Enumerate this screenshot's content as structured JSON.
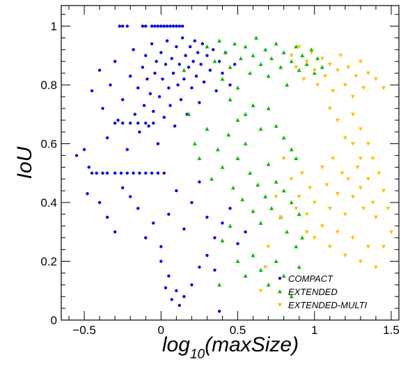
{
  "chart_data": {
    "type": "scatter",
    "xlabel": {
      "main": "log",
      "sub": "10",
      "rest": "(maxSize)"
    },
    "ylabel": "IoU",
    "xlim": [
      -0.65,
      1.55
    ],
    "ylim": [
      0,
      1.07
    ],
    "x_ticks": [
      {
        "value": -0.5,
        "label": "−0.5"
      },
      {
        "value": 0,
        "label": "0"
      },
      {
        "value": 0.5,
        "label": "0.5"
      },
      {
        "value": 1,
        "label": "1"
      },
      {
        "value": 1.5,
        "label": "1.5"
      }
    ],
    "y_ticks": [
      {
        "value": 0,
        "label": "0"
      },
      {
        "value": 0.2,
        "label": "0.2"
      },
      {
        "value": 0.4,
        "label": "0.4"
      },
      {
        "value": 0.6,
        "label": "0.6"
      },
      {
        "value": 0.8,
        "label": "0.8"
      },
      {
        "value": 1,
        "label": "1"
      }
    ],
    "grid": false,
    "legend_position": "bottom-right",
    "series": [
      {
        "name": "COMPACT",
        "color": "#0000ee",
        "marker": "circle",
        "points": [
          [
            -0.45,
            0.78
          ],
          [
            -0.4,
            0.85
          ],
          [
            -0.38,
            0.72
          ],
          [
            -0.35,
            0.62
          ],
          [
            -0.33,
            0.8
          ],
          [
            -0.3,
            0.88
          ],
          [
            -0.28,
            0.68
          ],
          [
            -0.25,
            0.75
          ],
          [
            -0.22,
            0.58
          ],
          [
            -0.2,
            0.83
          ],
          [
            -0.18,
            0.92
          ],
          [
            -0.17,
            0.7
          ],
          [
            -0.15,
            0.79
          ],
          [
            -0.14,
            0.64
          ],
          [
            -0.12,
            0.86
          ],
          [
            -0.11,
            0.73
          ],
          [
            -0.1,
            0.9
          ],
          [
            -0.09,
            0.82
          ],
          [
            -0.08,
            0.66
          ],
          [
            -0.07,
            0.77
          ],
          [
            -0.06,
            0.94
          ],
          [
            -0.05,
            0.71
          ],
          [
            -0.04,
            0.84
          ],
          [
            -0.03,
            0.88
          ],
          [
            -0.02,
            0.6
          ],
          [
            -0.01,
            0.76
          ],
          [
            0,
            0.91
          ],
          [
            0.01,
            0.82
          ],
          [
            0.02,
            0.69
          ],
          [
            0.03,
            0.87
          ],
          [
            0.04,
            0.95
          ],
          [
            0.05,
            0.79
          ],
          [
            0.06,
            0.73
          ],
          [
            0.07,
            0.89
          ],
          [
            0.08,
            0.84
          ],
          [
            0.09,
            0.66
          ],
          [
            0.1,
            0.93
          ],
          [
            0.11,
            0.8
          ],
          [
            0.12,
            0.87
          ],
          [
            0.13,
            0.75
          ],
          [
            0.14,
            0.96
          ],
          [
            0.15,
            0.82
          ],
          [
            0.16,
            0.9
          ],
          [
            0.17,
            0.7
          ],
          [
            0.18,
            0.86
          ],
          [
            0.19,
            0.93
          ],
          [
            0.2,
            0.79
          ],
          [
            0.21,
            0.88
          ],
          [
            0.22,
            0.95
          ],
          [
            0.23,
            0.83
          ],
          [
            0.24,
            0.91
          ],
          [
            0.25,
            0.74
          ],
          [
            0.26,
            0.87
          ],
          [
            0.27,
            0.94
          ],
          [
            0.28,
            0.81
          ],
          [
            0.3,
            0.9
          ],
          [
            0.32,
            0.85
          ],
          [
            0.34,
            0.92
          ],
          [
            0.36,
            0.78
          ],
          [
            0.38,
            0.88
          ],
          [
            0.4,
            0.84
          ],
          [
            0.42,
            0.91
          ],
          [
            0.45,
            0.8
          ],
          [
            0.48,
            0.87
          ],
          [
            -0.27,
            1.0
          ],
          [
            -0.25,
            1.0
          ],
          [
            -0.22,
            1.0
          ],
          [
            -0.12,
            1.0
          ],
          [
            -0.1,
            1.0
          ],
          [
            -0.06,
            1.0
          ],
          [
            -0.04,
            1.0
          ],
          [
            -0.02,
            1.0
          ],
          [
            0,
            1.0
          ],
          [
            0.02,
            1.0
          ],
          [
            0.04,
            1.0
          ],
          [
            0.06,
            1.0
          ],
          [
            0.08,
            1.0
          ],
          [
            0.1,
            1.0
          ],
          [
            0.12,
            1.0
          ],
          [
            0.14,
            1.0
          ],
          [
            -0.3,
            0.67
          ],
          [
            -0.25,
            0.67
          ],
          [
            -0.2,
            0.67
          ],
          [
            -0.15,
            0.67
          ],
          [
            -0.1,
            0.67
          ],
          [
            -0.05,
            0.67
          ],
          [
            -0.45,
            0.5
          ],
          [
            -0.42,
            0.5
          ],
          [
            -0.38,
            0.5
          ],
          [
            -0.35,
            0.5
          ],
          [
            -0.3,
            0.5
          ],
          [
            -0.26,
            0.5
          ],
          [
            -0.22,
            0.5
          ],
          [
            -0.18,
            0.5
          ],
          [
            -0.14,
            0.5
          ],
          [
            -0.1,
            0.5
          ],
          [
            -0.06,
            0.5
          ],
          [
            -0.02,
            0.5
          ],
          [
            0.02,
            0.5
          ],
          [
            -0.55,
            0.56
          ],
          [
            -0.5,
            0.58
          ],
          [
            -0.47,
            0.52
          ],
          [
            -0.48,
            0.43
          ],
          [
            -0.4,
            0.4
          ],
          [
            -0.35,
            0.35
          ],
          [
            -0.3,
            0.3
          ],
          [
            -0.25,
            0.45
          ],
          [
            -0.2,
            0.42
          ],
          [
            -0.15,
            0.38
          ],
          [
            -0.1,
            0.28
          ],
          [
            -0.05,
            0.33
          ],
          [
            0,
            0.25
          ],
          [
            0.05,
            0.36
          ],
          [
            0.1,
            0.44
          ],
          [
            0.15,
            0.31
          ],
          [
            0.2,
            0.4
          ],
          [
            0.25,
            0.47
          ],
          [
            0.3,
            0.35
          ],
          [
            0.35,
            0.28
          ],
          [
            0.4,
            0.33
          ],
          [
            0.45,
            0.38
          ],
          [
            0.5,
            0.26
          ],
          [
            0.55,
            0.3
          ],
          [
            0,
            0.2
          ],
          [
            0.05,
            0.15
          ],
          [
            0.1,
            0.1
          ],
          [
            0.12,
            0.05
          ],
          [
            0.15,
            0.08
          ],
          [
            0.2,
            0.12
          ],
          [
            0.25,
            0.18
          ],
          [
            0.3,
            0.22
          ],
          [
            0.35,
            0.17
          ],
          [
            0.38,
            0.03
          ],
          [
            0.03,
            0.11
          ],
          [
            0.07,
            0.07
          ]
        ]
      },
      {
        "name": "EXTENDED",
        "color": "#00bb00",
        "marker": "triangle-up",
        "points": [
          [
            0.3,
            0.93
          ],
          [
            0.35,
            0.88
          ],
          [
            0.38,
            0.95
          ],
          [
            0.4,
            0.82
          ],
          [
            0.42,
            0.91
          ],
          [
            0.45,
            0.86
          ],
          [
            0.48,
            0.94
          ],
          [
            0.5,
            0.79
          ],
          [
            0.52,
            0.89
          ],
          [
            0.55,
            0.93
          ],
          [
            0.58,
            0.84
          ],
          [
            0.6,
            0.9
          ],
          [
            0.62,
            0.96
          ],
          [
            0.65,
            0.87
          ],
          [
            0.68,
            0.92
          ],
          [
            0.7,
            0.83
          ],
          [
            0.72,
            0.89
          ],
          [
            0.75,
            0.94
          ],
          [
            0.78,
            0.86
          ],
          [
            0.8,
            0.91
          ],
          [
            0.82,
            0.8
          ],
          [
            0.85,
            0.88
          ],
          [
            0.88,
            0.93
          ],
          [
            0.9,
            0.85
          ],
          [
            0.92,
            0.9
          ],
          [
            0.95,
            0.87
          ],
          [
            0.98,
            0.92
          ],
          [
            1.0,
            0.84
          ],
          [
            1.02,
            0.89
          ],
          [
            1.05,
            0.86
          ],
          [
            0.15,
            0.85
          ],
          [
            0.18,
            0.7
          ],
          [
            0.22,
            0.6
          ],
          [
            0.25,
            0.55
          ],
          [
            0.3,
            0.65
          ],
          [
            0.33,
            0.48
          ],
          [
            0.37,
            0.58
          ],
          [
            0.4,
            0.52
          ],
          [
            0.44,
            0.63
          ],
          [
            0.47,
            0.45
          ],
          [
            0.5,
            0.55
          ],
          [
            0.53,
            0.41
          ],
          [
            0.55,
            0.6
          ],
          [
            0.58,
            0.5
          ],
          [
            0.6,
            0.37
          ],
          [
            0.63,
            0.46
          ],
          [
            0.65,
            0.33
          ],
          [
            0.68,
            0.42
          ],
          [
            0.7,
            0.53
          ],
          [
            0.72,
            0.38
          ],
          [
            0.75,
            0.47
          ],
          [
            0.78,
            0.35
          ],
          [
            0.8,
            0.44
          ],
          [
            0.82,
            0.3
          ],
          [
            0.85,
            0.4
          ],
          [
            0.88,
            0.25
          ],
          [
            0.9,
            0.36
          ],
          [
            0.92,
            0.28
          ],
          [
            0.5,
            0.2
          ],
          [
            0.55,
            0.15
          ],
          [
            0.6,
            0.22
          ],
          [
            0.65,
            0.17
          ],
          [
            0.38,
            0.12
          ],
          [
            0.4,
            0.27
          ],
          [
            0.45,
            0.32
          ],
          [
            0.7,
            0.12
          ],
          [
            0.75,
            0.2
          ],
          [
            0.8,
            0.15
          ],
          [
            0.85,
            0.08
          ],
          [
            0.9,
            0.18
          ],
          [
            0.55,
            0.7
          ],
          [
            0.6,
            0.73
          ],
          [
            0.5,
            0.68
          ],
          [
            0.45,
            0.75
          ],
          [
            0.65,
            0.65
          ],
          [
            0.7,
            0.72
          ],
          [
            0.75,
            0.66
          ],
          [
            0.8,
            0.62
          ],
          [
            0.85,
            0.58
          ],
          [
            0.88,
            0.55
          ]
        ]
      },
      {
        "name": "EXTENDED-MULTI",
        "color": "#ffc000",
        "marker": "triangle-down",
        "points": [
          [
            0.85,
            0.9
          ],
          [
            0.88,
            0.86
          ],
          [
            0.9,
            0.93
          ],
          [
            0.93,
            0.82
          ],
          [
            0.95,
            0.88
          ],
          [
            0.98,
            0.91
          ],
          [
            1.0,
            0.85
          ],
          [
            1.02,
            0.8
          ],
          [
            1.05,
            0.89
          ],
          [
            1.07,
            0.83
          ],
          [
            1.1,
            0.87
          ],
          [
            1.12,
            0.78
          ],
          [
            1.15,
            0.85
          ],
          [
            1.17,
            0.9
          ],
          [
            1.2,
            0.8
          ],
          [
            1.22,
            0.86
          ],
          [
            1.25,
            0.76
          ],
          [
            1.27,
            0.83
          ],
          [
            1.3,
            0.88
          ],
          [
            1.32,
            0.79
          ],
          [
            1.35,
            0.84
          ],
          [
            1.4,
            0.82
          ],
          [
            1.45,
            0.79
          ],
          [
            1.25,
            0.7
          ],
          [
            1.3,
            0.65
          ],
          [
            1.2,
            0.62
          ],
          [
            1.15,
            0.68
          ],
          [
            1.1,
            0.72
          ],
          [
            1.35,
            0.6
          ],
          [
            1.38,
            0.55
          ],
          [
            0.8,
            0.55
          ],
          [
            0.85,
            0.48
          ],
          [
            0.9,
            0.42
          ],
          [
            0.95,
            0.36
          ],
          [
            0.88,
            0.38
          ],
          [
            0.92,
            0.5
          ],
          [
            0.97,
            0.45
          ],
          [
            1.0,
            0.4
          ],
          [
            1.05,
            0.52
          ],
          [
            1.08,
            0.46
          ],
          [
            1.1,
            0.38
          ],
          [
            1.12,
            0.55
          ],
          [
            1.15,
            0.43
          ],
          [
            1.18,
            0.5
          ],
          [
            1.2,
            0.36
          ],
          [
            1.22,
            0.48
          ],
          [
            1.25,
            0.42
          ],
          [
            1.28,
            0.52
          ],
          [
            1.3,
            0.45
          ],
          [
            1.32,
            0.38
          ],
          [
            1.35,
            0.48
          ],
          [
            1.38,
            0.4
          ],
          [
            1.4,
            0.35
          ],
          [
            1.42,
            0.5
          ],
          [
            1.45,
            0.44
          ],
          [
            1.48,
            0.38
          ],
          [
            0.95,
            0.3
          ],
          [
            1.0,
            0.28
          ],
          [
            1.05,
            0.32
          ],
          [
            1.1,
            0.25
          ],
          [
            1.15,
            0.3
          ],
          [
            1.2,
            0.22
          ],
          [
            1.25,
            0.28
          ],
          [
            1.3,
            0.2
          ],
          [
            1.35,
            0.25
          ],
          [
            1.4,
            0.18
          ],
          [
            0.75,
            0.42
          ],
          [
            0.78,
            0.35
          ],
          [
            0.7,
            0.25
          ],
          [
            0.68,
            0.18
          ],
          [
            0.65,
            0.1
          ],
          [
            1.45,
            0.25
          ],
          [
            1.5,
            0.3
          ],
          [
            1.3,
            0.55
          ],
          [
            1.25,
            0.6
          ]
        ]
      }
    ]
  }
}
